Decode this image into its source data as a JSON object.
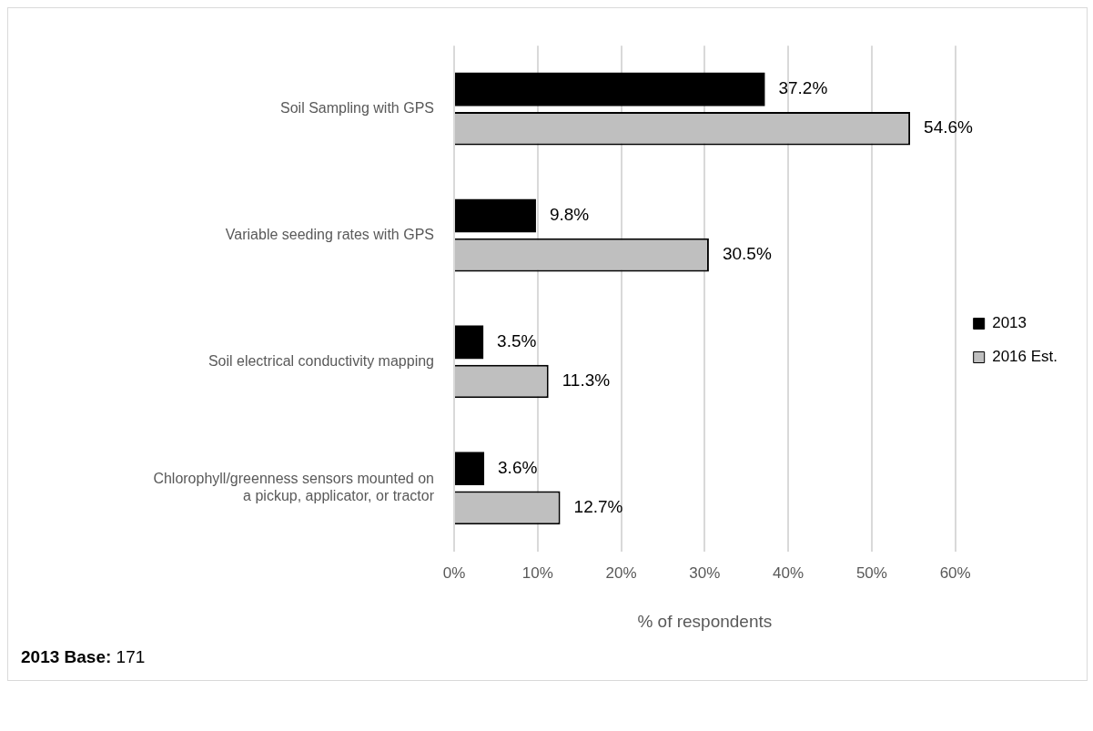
{
  "chart_data": {
    "type": "bar",
    "orientation": "horizontal",
    "xlabel": "% of respondents",
    "categories": [
      "Soil Sampling with GPS",
      "Variable seeding rates with GPS",
      "Soil electrical conductivity mapping",
      "Chlorophyll/greenness sensors mounted on a pickup, applicator, or tractor"
    ],
    "series": [
      {
        "name": "2013",
        "color": "#000000",
        "values": [
          37.2,
          9.8,
          3.5,
          3.6
        ],
        "value_labels": [
          "37.2%",
          "9.8%",
          "3.5%",
          "3.6%"
        ]
      },
      {
        "name": "2016 Est.",
        "color": "#bfbfbf",
        "values": [
          54.6,
          30.5,
          11.3,
          12.7
        ],
        "value_labels": [
          "54.6%",
          "30.5%",
          "11.3%",
          "12.7%"
        ]
      }
    ],
    "xlim": [
      0,
      60
    ],
    "xticks": [
      {
        "value": 0,
        "label": "0%"
      },
      {
        "value": 10,
        "label": "10%"
      },
      {
        "value": 20,
        "label": "20%"
      },
      {
        "value": 30,
        "label": "30%"
      },
      {
        "value": 40,
        "label": "40%"
      },
      {
        "value": 50,
        "label": "50%"
      },
      {
        "value": 60,
        "label": "60%"
      }
    ],
    "grid": "x",
    "legend": "right",
    "annotations": [
      "2013 Base: 171"
    ]
  }
}
